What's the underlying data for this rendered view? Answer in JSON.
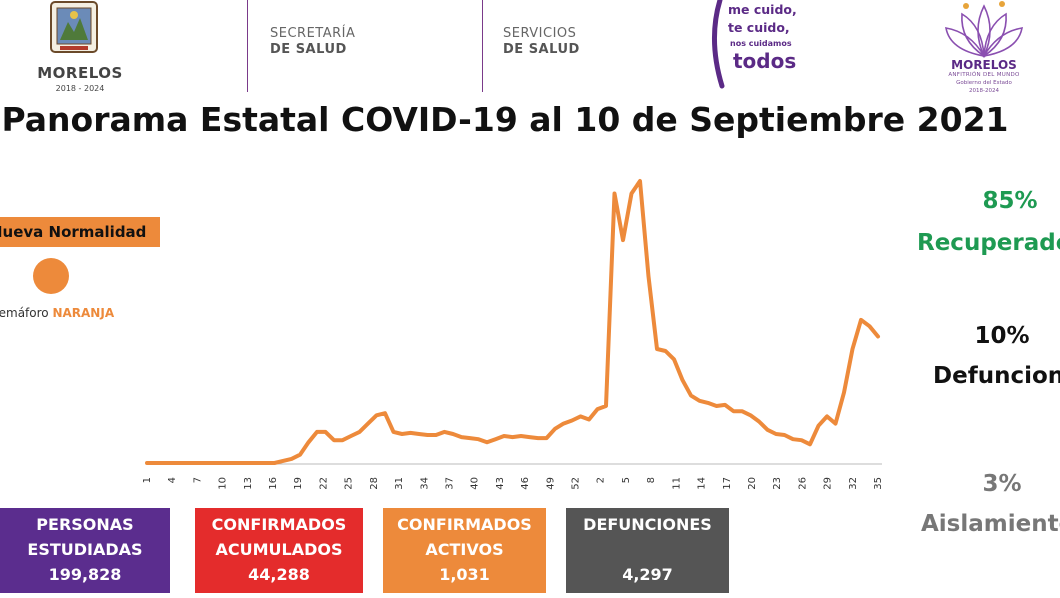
{
  "header": {
    "state_name": "MORELOS",
    "state_years": "2018 - 2024",
    "agency1_top": "SECRETARÍA",
    "agency1_bottom": "DE SALUD",
    "agency2_top": "SERVICIOS",
    "agency2_bottom": "DE SALUD",
    "campaign_line1": "me cuido,",
    "campaign_line2": "te cuido,",
    "campaign_line3": "nos cuidamos",
    "campaign_line4": "todos",
    "gov_name": "MORELOS",
    "gov_sub1": "ANFITRIÓN DEL MUNDO",
    "gov_sub2": "Gobierno del Estado",
    "gov_sub3": "2018-2024"
  },
  "title": "Panorama Estatal COVID-19 al 10 de Septiembre 2021",
  "left_panel": {
    "normalidad": "Nueva Normalidad",
    "semaforo_prefix": "Semáforo",
    "semaforo_color": "NARANJA",
    "semaforo_hex": "#ed8a3b"
  },
  "right_panel": {
    "recuperados_pct": "85%",
    "recuperados_label": "Recuperados",
    "defunciones_pct": "10%",
    "defunciones_label": "Defunciones",
    "aislamiento_pct": "3%",
    "aislamiento_label": "Aislamiento"
  },
  "boxes": {
    "personas_l1": "PERSONAS",
    "personas_l2": "ESTUDIADAS",
    "personas_value": "199,828",
    "acumulados_l1": "CONFIRMADOS",
    "acumulados_l2": "ACUMULADOS",
    "acumulados_value": "44,288",
    "activos_l1": "CONFIRMADOS",
    "activos_l2": "ACTIVOS",
    "activos_value": "1,031",
    "defunciones_l1": "DEFUNCIONES",
    "defunciones_value": "4,297"
  },
  "chart_data": {
    "type": "line",
    "color": "#ed8a3b",
    "tick_labels": [
      "1",
      "4",
      "7",
      "10",
      "13",
      "16",
      "19",
      "22",
      "25",
      "28",
      "31",
      "34",
      "37",
      "40",
      "43",
      "46",
      "49",
      "52",
      "2",
      "5",
      "8",
      "11",
      "14",
      "17",
      "20",
      "23",
      "26",
      "29",
      "32",
      "35"
    ],
    "values": [
      0,
      0,
      0,
      0,
      0,
      0,
      0,
      0,
      0,
      0,
      0,
      0,
      0,
      0,
      0,
      0,
      2,
      4,
      8,
      20,
      30,
      30,
      22,
      22,
      26,
      30,
      38,
      46,
      48,
      30,
      28,
      29,
      28,
      27,
      27,
      30,
      28,
      25,
      24,
      23,
      20,
      23,
      26,
      25,
      26,
      25,
      24,
      24,
      33,
      38,
      41,
      45,
      42,
      52,
      55,
      260,
      215,
      260,
      272,
      180,
      110,
      108,
      100,
      80,
      65,
      60,
      58,
      55,
      56,
      50,
      50,
      46,
      40,
      32,
      28,
      27,
      23,
      22,
      18,
      36,
      45,
      38,
      68,
      110,
      138,
      132,
      122
    ],
    "ylim": [
      0,
      300
    ],
    "grid": false,
    "legend": "none"
  }
}
